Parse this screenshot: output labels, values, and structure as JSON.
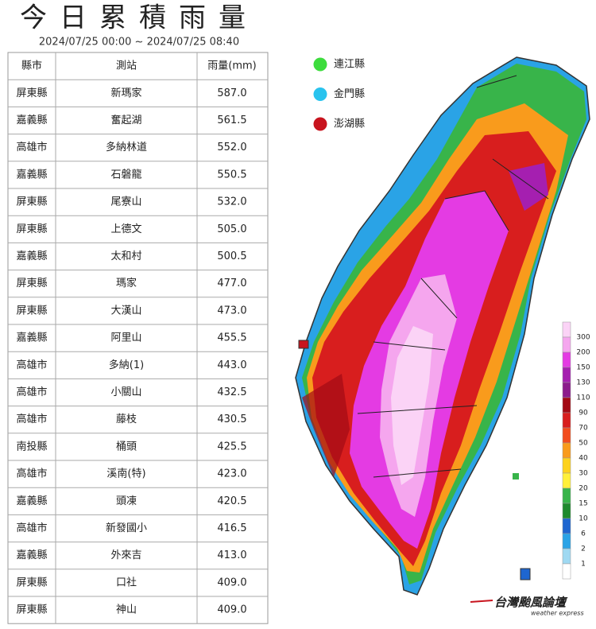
{
  "header": {
    "title": "今日累積雨量",
    "subtitle": "2024/07/25 00:00 ~ 2024/07/25 08:40"
  },
  "table": {
    "columns": [
      "縣市",
      "測站",
      "雨量(mm)"
    ],
    "rows": [
      [
        "屏東縣",
        "新瑪家",
        "587.0"
      ],
      [
        "嘉義縣",
        "奮起湖",
        "561.5"
      ],
      [
        "高雄市",
        "多納林道",
        "552.0"
      ],
      [
        "嘉義縣",
        "石磐龍",
        "550.5"
      ],
      [
        "屏東縣",
        "尾寮山",
        "532.0"
      ],
      [
        "屏東縣",
        "上德文",
        "505.0"
      ],
      [
        "嘉義縣",
        "太和村",
        "500.5"
      ],
      [
        "屏東縣",
        "瑪家",
        "477.0"
      ],
      [
        "屏東縣",
        "大漢山",
        "473.0"
      ],
      [
        "嘉義縣",
        "阿里山",
        "455.5"
      ],
      [
        "高雄市",
        "多納(1)",
        "443.0"
      ],
      [
        "高雄市",
        "小關山",
        "432.5"
      ],
      [
        "高雄市",
        "藤枝",
        "430.5"
      ],
      [
        "南投縣",
        "桶頭",
        "425.5"
      ],
      [
        "高雄市",
        "溪南(特)",
        "423.0"
      ],
      [
        "嘉義縣",
        "頭凍",
        "420.5"
      ],
      [
        "高雄市",
        "新發國小",
        "416.5"
      ],
      [
        "嘉義縣",
        "外來吉",
        "413.0"
      ],
      [
        "屏東縣",
        "口社",
        "409.0"
      ],
      [
        "屏東縣",
        "神山",
        "409.0"
      ]
    ]
  },
  "legend": {
    "items": [
      {
        "label": "連江縣",
        "color": "#3ddc3d"
      },
      {
        "label": "金門縣",
        "color": "#29c3ee"
      },
      {
        "label": "澎湖縣",
        "color": "#c8141e"
      }
    ]
  },
  "scale": {
    "ticks": [
      300,
      200,
      150,
      130,
      110,
      90,
      70,
      50,
      40,
      30,
      20,
      15,
      10,
      6,
      2,
      1
    ],
    "colors": [
      "#fbd3f6",
      "#f5a6ee",
      "#e43be3",
      "#a51fb0",
      "#8c1c8c",
      "#a30a14",
      "#d81e1e",
      "#f24d1e",
      "#f99b1c",
      "#fdd21c",
      "#fff03a",
      "#38b44a",
      "#1f8a2e",
      "#1e66d0",
      "#2aa3e6",
      "#9fd9f2",
      "#ffffff"
    ]
  },
  "logo": {
    "name": "台灣颱風論壇",
    "tagline": "weather express"
  }
}
